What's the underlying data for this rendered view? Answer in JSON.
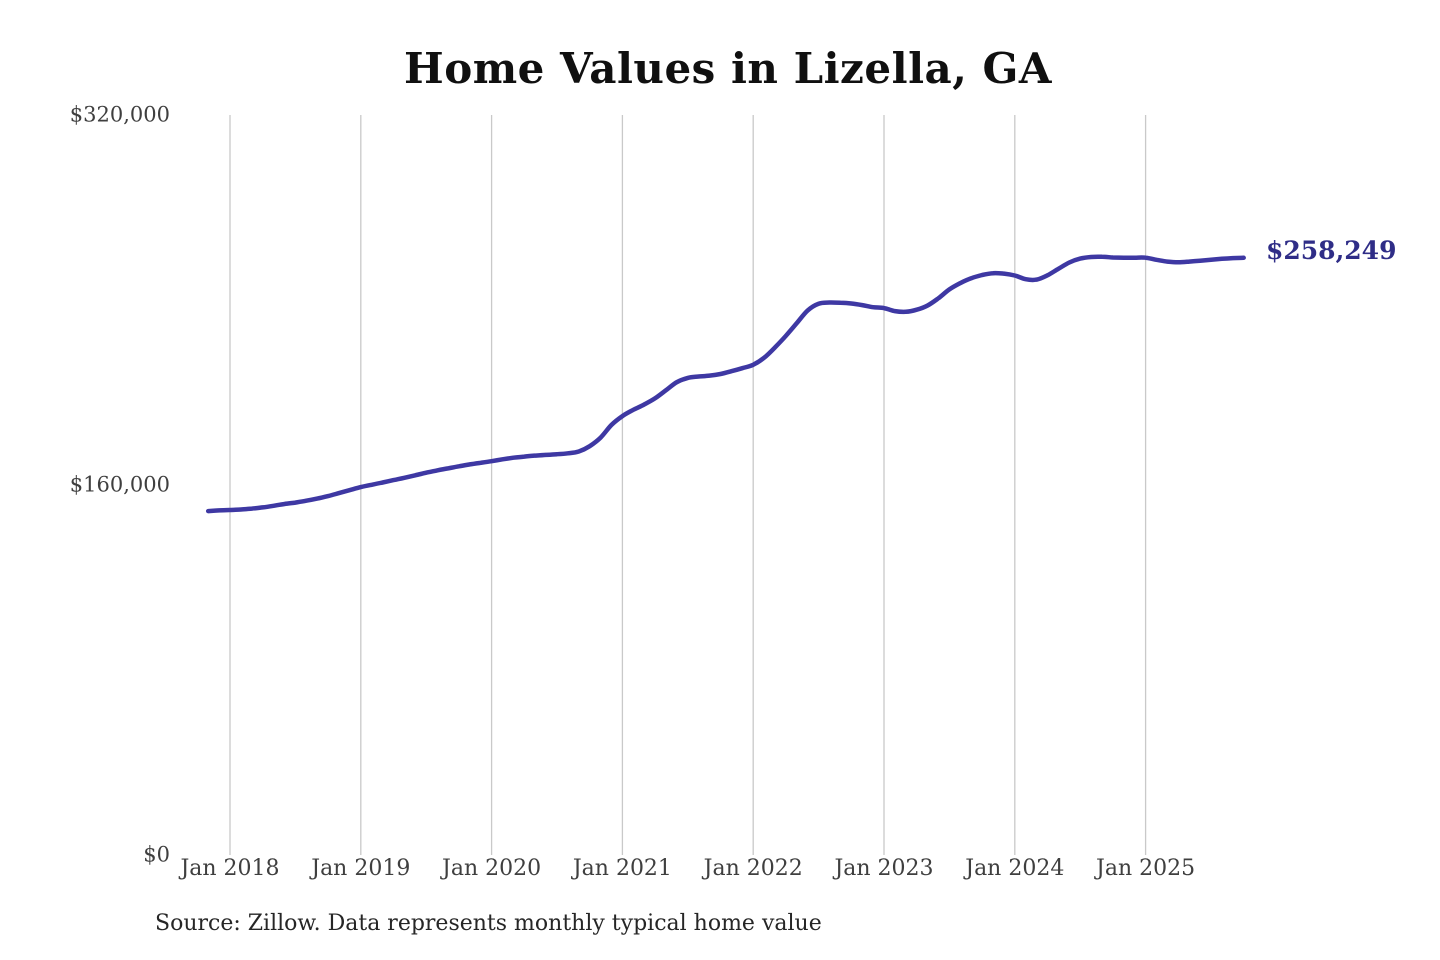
{
  "chart_data": {
    "type": "line",
    "title": "Home Values in Lizella, GA",
    "xlabel": "",
    "ylabel": "",
    "ylim": [
      0,
      320000
    ],
    "grid": "vertical-only",
    "legend": "none",
    "source_note": "Source: Zillow. Data represents monthly typical home value",
    "end_value": 258249,
    "end_value_label": "$258,249",
    "x_start": "2017-11",
    "x_frequency": "monthly",
    "y_ticks": [
      {
        "value": 0,
        "label": "$0"
      },
      {
        "value": 160000,
        "label": "$160,000"
      },
      {
        "value": 320000,
        "label": "$320,000"
      }
    ],
    "x_ticks": [
      {
        "label": "Jan 2018",
        "month_index": 2
      },
      {
        "label": "Jan 2019",
        "month_index": 14
      },
      {
        "label": "Jan 2020",
        "month_index": 26
      },
      {
        "label": "Jan 2021",
        "month_index": 38
      },
      {
        "label": "Jan 2022",
        "month_index": 50
      },
      {
        "label": "Jan 2023",
        "month_index": 62
      },
      {
        "label": "Jan 2024",
        "month_index": 74
      },
      {
        "label": "Jan 2025",
        "month_index": 86
      }
    ],
    "series": [
      {
        "name": "Monthly typical home value",
        "values": [
          148700,
          149000,
          149200,
          149400,
          149800,
          150300,
          151000,
          151800,
          152400,
          153200,
          154100,
          155200,
          156500,
          157800,
          159100,
          160100,
          161100,
          162100,
          163100,
          164200,
          165300,
          166300,
          167200,
          168100,
          168900,
          169600,
          170300,
          171100,
          171800,
          172300,
          172700,
          173000,
          173300,
          173700,
          174500,
          176800,
          180500,
          186000,
          189800,
          192500,
          194800,
          197500,
          201000,
          204500,
          206300,
          206900,
          207300,
          208000,
          209200,
          210500,
          212000,
          215000,
          219500,
          224500,
          230000,
          235500,
          238400,
          238900,
          238800,
          238500,
          237800,
          236900,
          236500,
          235200,
          234900,
          235800,
          237600,
          240800,
          244600,
          247300,
          249400,
          250800,
          251600,
          251400,
          250600,
          249000,
          248800,
          250700,
          253500,
          256200,
          257900,
          258600,
          258700,
          258400,
          258300,
          258300,
          258300,
          257400,
          256600,
          256300,
          256600,
          257000,
          257400,
          257800,
          258100,
          258249
        ]
      }
    ],
    "colors": {
      "line": "#3e38a3",
      "grid": "#c9c9c9",
      "end_label": "#2f2d87",
      "axis_text": "#3f3f3f",
      "title_text": "#101010",
      "source_text": "#262626"
    }
  }
}
